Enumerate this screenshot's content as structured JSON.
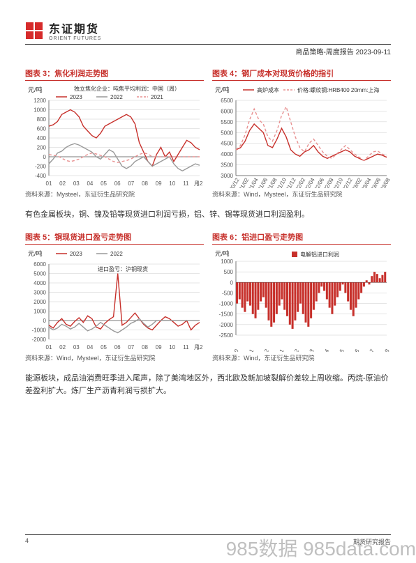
{
  "header": {
    "brand_cn": "东证期货",
    "brand_en": "ORIENT FUTURES",
    "report_line": "商品策略-周度报告 2023-09-11"
  },
  "paragraph1": "有色金属板块，铜、镍及铅等现货进口利润亏损，铝、锌、锡等现货进口利润盈利。",
  "paragraph2": "能源板块，成品油消费旺季进入尾声，除了美湾地区外，西北欧及新加坡裂解价差较上周收缩。丙烷-原油价差盈利扩大。炼厂生产沥青利润亏损扩大。",
  "chart3": {
    "title": "图表 3：焦化利润走势图",
    "y_label": "元/吨",
    "legend_title": "独立焦化企业：吨焦平均利润：中国（周）",
    "legend_items": [
      "2023",
      "2022",
      "2021"
    ],
    "legend_colors": [
      "#c7302b",
      "#999999",
      "#e89090"
    ],
    "y_ticks": [
      -400,
      -200,
      0,
      200,
      400,
      600,
      800,
      1000,
      1200
    ],
    "x_ticks": [
      "01",
      "02",
      "03",
      "04",
      "05",
      "06",
      "07",
      "08",
      "09",
      "10",
      "11",
      "12"
    ],
    "x_suffix": "月",
    "series": {
      "2021": [
        650,
        680,
        750,
        900,
        950,
        1000,
        950,
        850,
        650,
        550,
        450,
        400,
        500,
        650,
        700,
        750,
        800,
        850,
        900,
        850,
        700,
        300,
        100,
        -100,
        -200,
        50,
        200,
        0,
        100,
        -100,
        50,
        200,
        350,
        300,
        200,
        150
      ],
      "2022": [
        -150,
        -50,
        80,
        120,
        200,
        250,
        280,
        250,
        200,
        150,
        100,
        0,
        -50,
        50,
        150,
        100,
        -50,
        -200,
        -250,
        -200,
        -100,
        -50,
        0,
        -100,
        -200,
        -150,
        -100,
        -50,
        0,
        -150,
        -250,
        -300,
        -250,
        -200,
        -150,
        -180
      ],
      "2023": [
        50,
        30,
        20,
        -30,
        -80,
        -100,
        -80,
        -50,
        0,
        50,
        80,
        60,
        30,
        0,
        -50,
        -100,
        -120,
        -100,
        -80,
        -50,
        0,
        50,
        80,
        60,
        0,
        0,
        0,
        0,
        0,
        0,
        0,
        0,
        0,
        0,
        0,
        0
      ]
    },
    "source": "资料来源：Mysteel，东证衍生品研究院"
  },
  "chart4": {
    "title": "图表 4：钢厂成本对现货价格的指引",
    "y_label": "元/吨",
    "legend_items": [
      "高炉成本",
      "价格:螺纹钢:HRB400 20mm:上海"
    ],
    "legend_colors": [
      "#c7302b",
      "#e89090"
    ],
    "y_ticks": [
      3000,
      3500,
      4000,
      4500,
      5000,
      5500,
      6000,
      6500
    ],
    "x_ticks": [
      "20/12",
      "21/02",
      "21/04",
      "21/06",
      "21/08",
      "21/10",
      "21/12",
      "22/02",
      "22/04",
      "22/06",
      "22/08",
      "22/10",
      "22/12",
      "23/02",
      "23/04",
      "23/06",
      "23/08"
    ],
    "series": {
      "cost": [
        4200,
        4300,
        4600,
        5100,
        5400,
        5200,
        5000,
        4400,
        4300,
        4700,
        5200,
        4800,
        4200,
        4000,
        3900,
        4100,
        4200,
        4400,
        4100,
        3900,
        3800,
        3900,
        4000,
        4100,
        4200,
        4100,
        3900,
        3800,
        3700,
        3800,
        3900,
        4000,
        3950,
        3850
      ],
      "price": [
        4200,
        4400,
        4900,
        5600,
        6100,
        5600,
        5400,
        4800,
        4600,
        5100,
        5800,
        6200,
        5500,
        4800,
        4300,
        4100,
        4500,
        4700,
        4400,
        4100,
        3900,
        3800,
        4000,
        4200,
        4400,
        4200,
        4000,
        3850,
        3700,
        3900,
        4100,
        4150,
        4000,
        3900
      ]
    },
    "source": "资料来源：Wind，Mysteel，东证衍生品研究院"
  },
  "chart5": {
    "title": "图表 5：铜现货进口盈亏走势图",
    "y_label": "元/吨",
    "legend_items": [
      "2023",
      "2022"
    ],
    "legend_colors": [
      "#c7302b",
      "#999999"
    ],
    "sub_label": "进口盈亏：沪铜现货",
    "y_ticks": [
      -2000,
      -1000,
      0,
      1000,
      2000,
      3000,
      4000,
      5000,
      6000
    ],
    "x_ticks": [
      "01",
      "02",
      "03",
      "04",
      "05",
      "06",
      "07",
      "08",
      "09",
      "10",
      "11",
      "12"
    ],
    "x_suffix": "月",
    "series": {
      "2022": [
        -500,
        -800,
        -200,
        200,
        -400,
        -600,
        -100,
        300,
        -200,
        500,
        200,
        -700,
        -900,
        -300,
        100,
        400,
        5000,
        -500,
        -200,
        300,
        800,
        200,
        -400,
        -800,
        -1000,
        -500,
        0,
        400,
        200,
        -200,
        -600,
        -400,
        0,
        -1000,
        -500,
        -200
      ],
      "2023": [
        -700,
        -1000,
        -800,
        -400,
        -600,
        -900,
        -700,
        -300,
        -700,
        -1100,
        -900,
        -600,
        -200,
        -500,
        -800,
        -1100,
        -1300,
        -1000,
        -700,
        -300,
        -100,
        200,
        -300,
        -700,
        -400,
        0,
        0,
        0,
        0,
        0,
        0,
        0,
        0,
        0,
        0,
        0
      ]
    },
    "source": "资料来源：Wind，Mysteel，东证衍生品研究院"
  },
  "chart6": {
    "title": "图表 6：铝进口盈亏走势图",
    "y_label": "元/吨",
    "legend_items": [
      "电解铝进口利润"
    ],
    "legend_colors": [
      "#c7302b"
    ],
    "y_ticks": [
      -2500,
      -2000,
      -1500,
      -1000,
      -500,
      0,
      500,
      1000
    ],
    "x_ticks": [
      "22/10",
      "22/11",
      "22/12",
      "23/01",
      "23/02",
      "23/03",
      "23/04",
      "23/05",
      "23/06",
      "23/07",
      "23/08"
    ],
    "series": {
      "bars": [
        -1000,
        -800,
        -1200,
        -1400,
        -900,
        -1100,
        -1500,
        -1700,
        -1300,
        -900,
        -700,
        -1200,
        -1800,
        -2100,
        -1900,
        -1500,
        -1100,
        -800,
        -1300,
        -1600,
        -2000,
        -2200,
        -1800,
        -1400,
        -1000,
        -1500,
        -1900,
        -2100,
        -1700,
        -1300,
        -900,
        -500,
        -200,
        -400,
        -800,
        -1200,
        -1500,
        -1100,
        -700,
        -400,
        -100,
        -500,
        -900,
        -1300,
        -1600,
        -1200,
        -800,
        -500,
        -200,
        100,
        -100,
        300,
        500,
        400,
        200,
        350,
        500
      ]
    },
    "source": "资料来源：Wind，东证衍生品研究院"
  },
  "footer": {
    "page": "4",
    "right": "期货研究报告"
  },
  "watermark": "985数据 985data.com"
}
